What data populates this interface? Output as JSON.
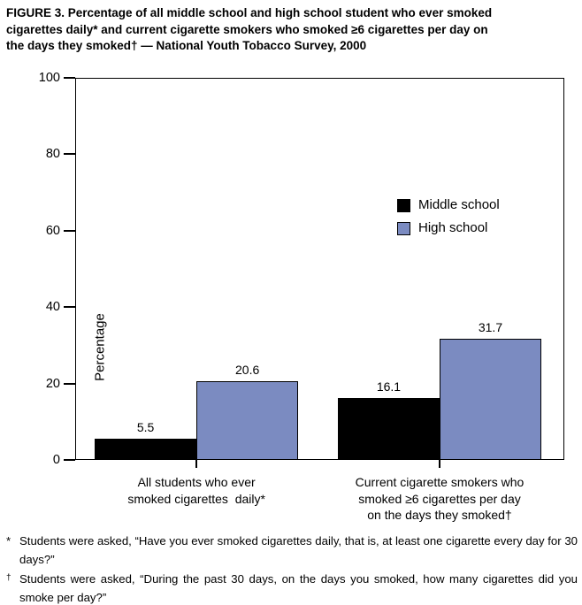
{
  "title_lines": [
    "FIGURE 3. Percentage of all middle school and high school student who ever smoked",
    "cigarettes daily* and current cigarette smokers who smoked ≥6 cigarettes per day on",
    "the days they smoked† — National Youth Tobacco Survey, 2000"
  ],
  "chart_data": {
    "type": "bar",
    "title": "FIGURE 3. Percentage of all middle school and high school student who ever smoked cigarettes daily* and current cigarette smokers who smoked ≥6 cigarettes per day on the days they smoked† — National Youth Tobacco Survey, 2000",
    "xlabel": "",
    "ylabel": "Percentage",
    "ylim": [
      0,
      100
    ],
    "y_ticks": [
      0,
      20,
      40,
      60,
      80,
      100
    ],
    "grid": false,
    "legend_position": "upper right inside plot",
    "categories": [
      [
        "All students who ever",
        "smoked cigarettes  daily*"
      ],
      [
        "Current cigarette smokers who",
        "smoked ≥6 cigarettes per day",
        "on the days they smoked†"
      ]
    ],
    "series": [
      {
        "name": "Middle school",
        "color": "#000000",
        "values": [
          5.5,
          16.1
        ]
      },
      {
        "name": "High school",
        "color": "#7b8bc1",
        "values": [
          20.6,
          31.7
        ]
      }
    ],
    "value_label_format": "one-decimal"
  },
  "footnotes": [
    {
      "marker": "*",
      "text": "Students were asked, “Have you ever smoked cigarettes daily, that is, at least one cigarette every day for 30 days?”"
    },
    {
      "marker": "†",
      "text": "Students were asked, “During the past 30 days, on the days you smoked, how many cigarettes did you smoke per day?”"
    }
  ],
  "colors": {
    "middle_school_bar": "#000000",
    "high_school_bar": "#7b8bc1",
    "axis": "#000000",
    "background": "#ffffff"
  }
}
